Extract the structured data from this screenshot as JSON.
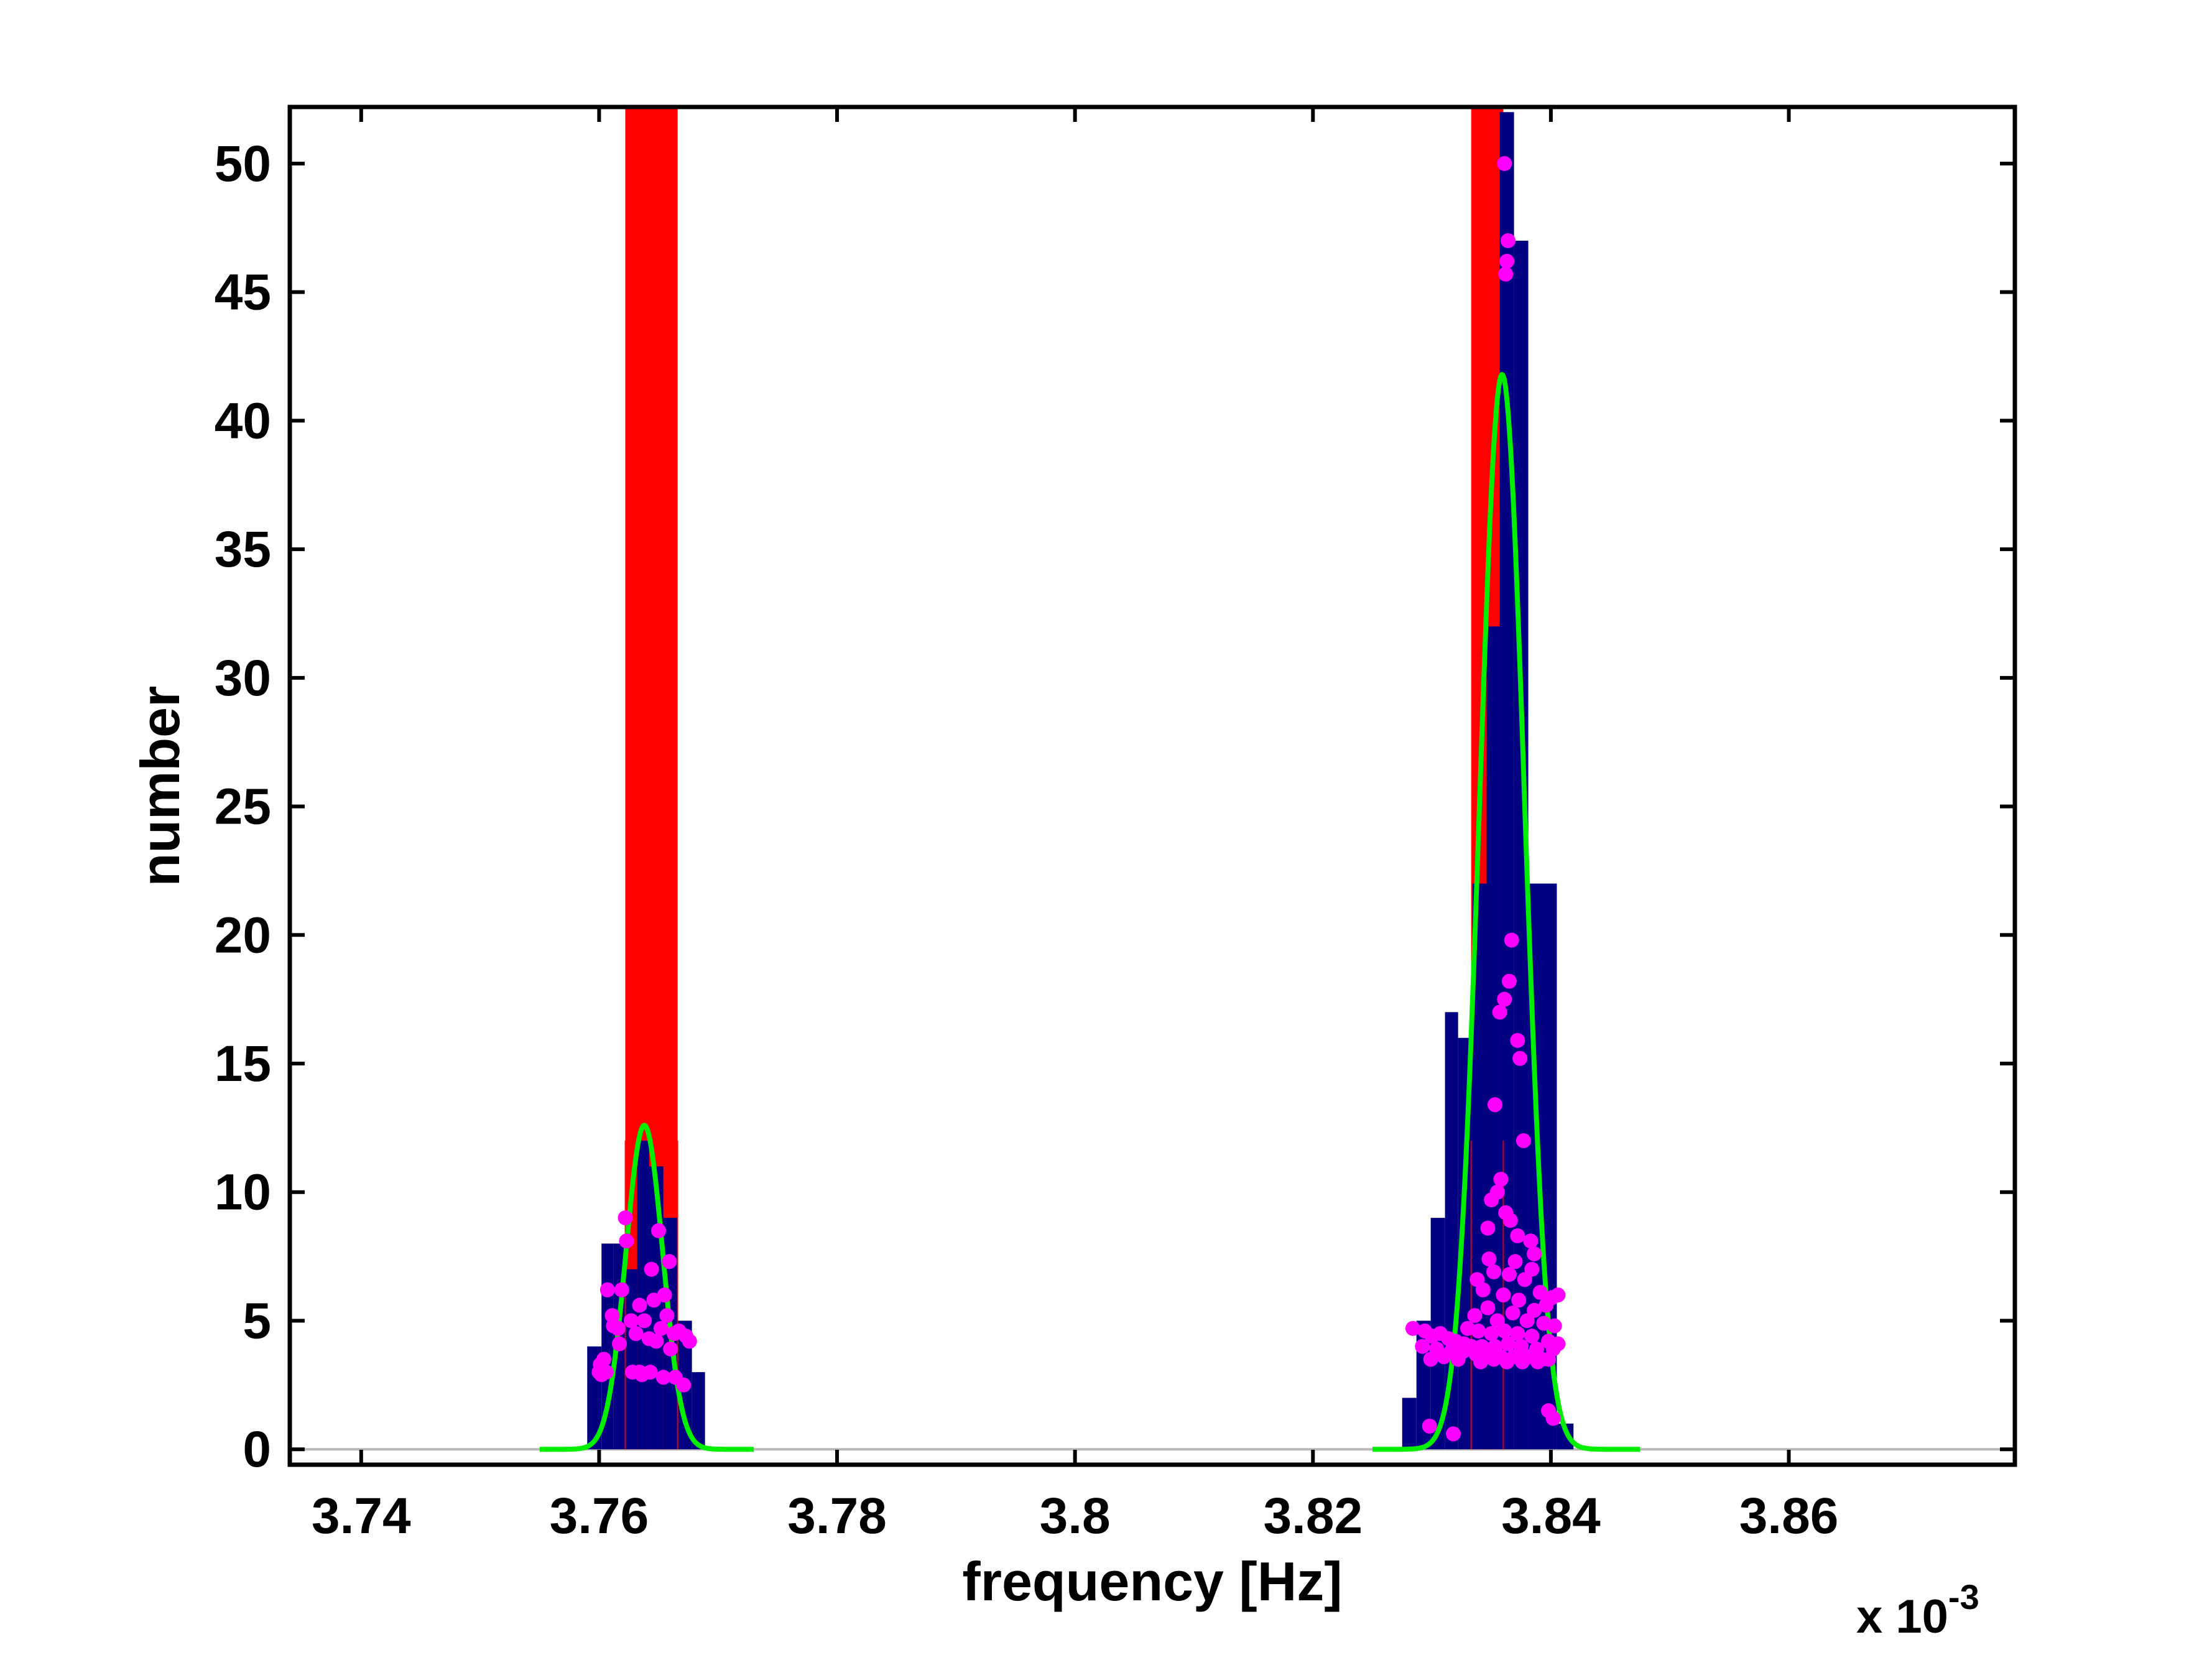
{
  "chart_data": {
    "type": "histogram",
    "xlabel": "frequency [Hz]",
    "ylabel": "number",
    "x_multiplier": {
      "base": "x 10",
      "exponent": "-3"
    },
    "xlim": [
      3.734,
      3.879
    ],
    "ylim": [
      -0.6,
      52.2
    ],
    "x_ticks": [
      3.74,
      3.76,
      3.78,
      3.8,
      3.82,
      3.84,
      3.86
    ],
    "x_tick_labels": [
      "3.74",
      "3.76",
      "3.78",
      "3.8",
      "3.82",
      "3.84",
      "3.86"
    ],
    "y_ticks": [
      0,
      5,
      10,
      15,
      20,
      25,
      30,
      35,
      40,
      45,
      50
    ],
    "y_tick_labels": [
      "0",
      "5",
      "10",
      "15",
      "20",
      "25",
      "30",
      "35",
      "40",
      "45",
      "50"
    ],
    "grid": false,
    "colors": {
      "red_hist": "#ff0000",
      "blue_hist": "#000080",
      "gaussian": "#00ee00",
      "points": "#ff00ff",
      "axis": "#000000",
      "zero_line": "#b8b8b8"
    },
    "red_bars": [
      {
        "x0": 3.7622,
        "x1": 3.7666,
        "count": 52.5
      },
      {
        "x0": 3.8333,
        "x1": 3.836,
        "count": 52.5
      }
    ],
    "blue_bars": [
      {
        "x0": 3.759,
        "x1": 3.7602,
        "count": 4
      },
      {
        "x0": 3.7602,
        "x1": 3.7612,
        "count": 8
      },
      {
        "x0": 3.7612,
        "x1": 3.7622,
        "count": 8
      },
      {
        "x0": 3.7622,
        "x1": 3.7632,
        "count": 7
      },
      {
        "x0": 3.7632,
        "x1": 3.7642,
        "count": 12
      },
      {
        "x0": 3.7642,
        "x1": 3.7654,
        "count": 11
      },
      {
        "x0": 3.7654,
        "x1": 3.7666,
        "count": 9
      },
      {
        "x0": 3.7666,
        "x1": 3.7678,
        "count": 5
      },
      {
        "x0": 3.7678,
        "x1": 3.7689,
        "count": 3
      },
      {
        "x0": 3.8275,
        "x1": 3.8287,
        "count": 2
      },
      {
        "x0": 3.8287,
        "x1": 3.8299,
        "count": 5
      },
      {
        "x0": 3.8299,
        "x1": 3.8311,
        "count": 9
      },
      {
        "x0": 3.8311,
        "x1": 3.8322,
        "count": 17
      },
      {
        "x0": 3.8322,
        "x1": 3.8334,
        "count": 16
      },
      {
        "x0": 3.8334,
        "x1": 3.8346,
        "count": 22
      },
      {
        "x0": 3.8346,
        "x1": 3.8357,
        "count": 32
      },
      {
        "x0": 3.8357,
        "x1": 3.8369,
        "count": 52
      },
      {
        "x0": 3.8369,
        "x1": 3.8381,
        "count": 47
      },
      {
        "x0": 3.8381,
        "x1": 3.8393,
        "count": 22
      },
      {
        "x0": 3.8393,
        "x1": 3.8405,
        "count": 22
      },
      {
        "x0": 3.8405,
        "x1": 3.8419,
        "count": 1
      }
    ],
    "gaussian_fits": [
      {
        "mean": 3.7638,
        "sigma": 0.00155,
        "amplitude": 12.6,
        "x_range": [
          3.755,
          3.773
        ]
      },
      {
        "mean": 3.8359,
        "sigma": 0.00188,
        "amplitude": 41.8,
        "x_range": [
          3.825,
          3.8475
        ]
      }
    ],
    "scatter_points": [
      [
        3.76,
        3.0
      ],
      [
        3.7601,
        3.3
      ],
      [
        3.7604,
        3.5
      ],
      [
        3.7602,
        2.9
      ],
      [
        3.7606,
        3.0
      ],
      [
        3.7607,
        6.2
      ],
      [
        3.7611,
        5.2
      ],
      [
        3.7612,
        4.8
      ],
      [
        3.7617,
        4.1
      ],
      [
        3.7619,
        6.2
      ],
      [
        3.7622,
        9.0
      ],
      [
        3.7623,
        8.1
      ],
      [
        3.7627,
        5.0
      ],
      [
        3.7628,
        3.0
      ],
      [
        3.7631,
        4.5
      ],
      [
        3.7634,
        5.6
      ],
      [
        3.7636,
        2.9
      ],
      [
        3.7638,
        5.0
      ],
      [
        3.7642,
        4.3
      ],
      [
        3.7644,
        7.0
      ],
      [
        3.7643,
        3.0
      ],
      [
        3.7646,
        5.8
      ],
      [
        3.7648,
        4.2
      ],
      [
        3.765,
        8.5
      ],
      [
        3.7652,
        4.7
      ],
      [
        3.7654,
        2.8
      ],
      [
        3.7655,
        6.0
      ],
      [
        3.7657,
        5.2
      ],
      [
        3.7659,
        7.3
      ],
      [
        3.766,
        3.9
      ],
      [
        3.7663,
        4.5
      ],
      [
        3.7664,
        2.8
      ],
      [
        3.7667,
        4.6
      ],
      [
        3.7671,
        2.5
      ],
      [
        3.7676,
        4.2
      ],
      [
        3.7673,
        4.4
      ],
      [
        3.7634,
        3.0
      ],
      [
        3.7616,
        4.7
      ],
      [
        3.8361,
        50.0
      ],
      [
        3.8364,
        47.0
      ],
      [
        3.8363,
        46.2
      ],
      [
        3.8362,
        45.7
      ],
      [
        3.8367,
        19.8
      ],
      [
        3.8365,
        18.2
      ],
      [
        3.8361,
        17.5
      ],
      [
        3.8357,
        17.0
      ],
      [
        3.8372,
        15.9
      ],
      [
        3.8374,
        15.2
      ],
      [
        3.8353,
        13.4
      ],
      [
        3.8377,
        12.0
      ],
      [
        3.8355,
        10.0
      ],
      [
        3.8358,
        10.5
      ],
      [
        3.835,
        9.7
      ],
      [
        3.8362,
        9.2
      ],
      [
        3.8347,
        8.6
      ],
      [
        3.8366,
        8.9
      ],
      [
        3.8372,
        8.3
      ],
      [
        3.8383,
        8.1
      ],
      [
        3.8386,
        7.6
      ],
      [
        3.8348,
        7.4
      ],
      [
        3.8352,
        6.9
      ],
      [
        3.8365,
        6.8
      ],
      [
        3.8378,
        6.6
      ],
      [
        3.8391,
        6.1
      ],
      [
        3.8343,
        6.2
      ],
      [
        3.836,
        6.0
      ],
      [
        3.8373,
        5.8
      ],
      [
        3.8386,
        5.4
      ],
      [
        3.8396,
        5.6
      ],
      [
        3.8401,
        5.9
      ],
      [
        3.8336,
        5.2
      ],
      [
        3.8347,
        5.5
      ],
      [
        3.8355,
        5.0
      ],
      [
        3.8368,
        5.3
      ],
      [
        3.838,
        5.0
      ],
      [
        3.8394,
        4.9
      ],
      [
        3.8403,
        4.8
      ],
      [
        3.833,
        4.7
      ],
      [
        3.8339,
        4.6
      ],
      [
        3.835,
        4.5
      ],
      [
        3.8361,
        4.6
      ],
      [
        3.8372,
        4.5
      ],
      [
        3.8384,
        4.4
      ],
      [
        3.8398,
        4.2
      ],
      [
        3.8284,
        4.7
      ],
      [
        3.8294,
        4.6
      ],
      [
        3.83,
        4.4
      ],
      [
        3.8307,
        4.5
      ],
      [
        3.8314,
        4.3
      ],
      [
        3.832,
        4.2
      ],
      [
        3.8327,
        4.1
      ],
      [
        3.8333,
        4.0
      ],
      [
        3.8342,
        4.0
      ],
      [
        3.8353,
        4.0
      ],
      [
        3.8364,
        4.1
      ],
      [
        3.8375,
        4.0
      ],
      [
        3.8388,
        3.9
      ],
      [
        3.8402,
        3.9
      ],
      [
        3.8292,
        4.0
      ],
      [
        3.8304,
        3.9
      ],
      [
        3.8316,
        3.8
      ],
      [
        3.8326,
        3.8
      ],
      [
        3.8337,
        3.7
      ],
      [
        3.8346,
        3.6
      ],
      [
        3.8358,
        3.6
      ],
      [
        3.8369,
        3.6
      ],
      [
        3.8381,
        3.6
      ],
      [
        3.8392,
        3.5
      ],
      [
        3.831,
        3.6
      ],
      [
        3.8322,
        3.5
      ],
      [
        3.8341,
        3.4
      ],
      [
        3.8352,
        3.5
      ],
      [
        3.8363,
        3.4
      ],
      [
        3.8376,
        3.4
      ],
      [
        3.8389,
        3.4
      ],
      [
        3.8398,
        3.5
      ],
      [
        3.8299,
        3.5
      ],
      [
        3.8406,
        4.1
      ],
      [
        3.8398,
        1.5
      ],
      [
        3.8402,
        1.2
      ],
      [
        3.8298,
        0.9
      ],
      [
        3.8318,
        0.6
      ],
      [
        3.8406,
        6.0
      ],
      [
        3.8338,
        6.6
      ],
      [
        3.8384,
        7.0
      ],
      [
        3.837,
        7.3
      ]
    ]
  }
}
